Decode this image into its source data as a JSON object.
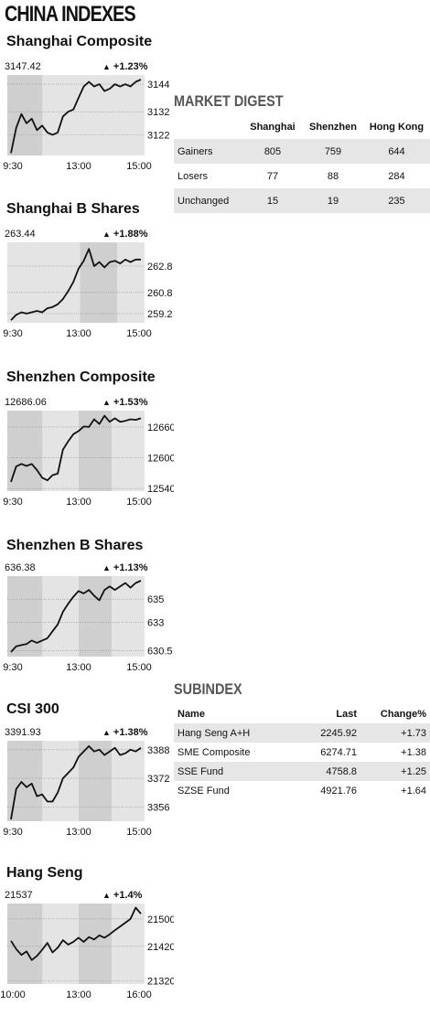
{
  "page": {
    "title": "CHINA INDEXES"
  },
  "chart_data": [
    {
      "type": "line",
      "name": "Shanghai Composite",
      "last_value": "3147.42",
      "change": "+1.23%",
      "direction": "up",
      "x_ticks": [
        "9:30",
        "13:00",
        "15:00"
      ],
      "y_ticks": [
        3144,
        3132,
        3122
      ],
      "ylim": [
        3113,
        3148
      ],
      "y": [
        3114,
        3125,
        3131,
        3127,
        3129,
        3124,
        3126,
        3123,
        3122,
        3123,
        3130,
        3132,
        3133,
        3138,
        3143,
        3145,
        3143,
        3144,
        3141,
        3142,
        3144,
        3143,
        3144,
        3143,
        3145,
        3146
      ]
    },
    {
      "type": "line",
      "name": "Shanghai B Shares",
      "last_value": "263.44",
      "change": "+1.88%",
      "direction": "up",
      "x_ticks": [
        "9:30",
        "13:00",
        "15:00"
      ],
      "y_ticks": [
        262.8,
        260.8,
        259.2
      ],
      "ylim": [
        258.5,
        264.6
      ],
      "y": [
        258.7,
        259.1,
        259.3,
        259.2,
        259.3,
        259.4,
        259.3,
        259.6,
        259.7,
        259.9,
        260.3,
        260.9,
        261.6,
        262.6,
        263.2,
        264.1,
        262.8,
        263.1,
        262.7,
        263.1,
        263.2,
        263.0,
        263.3,
        263.1,
        263.3,
        263.3
      ]
    },
    {
      "type": "line",
      "name": "Shenzhen Composite",
      "last_value": "12686.06",
      "change": "+1.53%",
      "direction": "up",
      "x_ticks": [
        "9:30",
        "13:00",
        "15:00"
      ],
      "y_ticks": [
        12660,
        12600,
        12540
      ],
      "ylim": [
        12535,
        12692
      ],
      "y": [
        12553,
        12583,
        12588,
        12584,
        12588,
        12576,
        12561,
        12556,
        12566,
        12569,
        12616,
        12632,
        12646,
        12652,
        12661,
        12660,
        12675,
        12666,
        12682,
        12670,
        12677,
        12670,
        12672,
        12675,
        12674,
        12677
      ]
    },
    {
      "type": "line",
      "name": "Shenzhen B Shares",
      "last_value": "636.38",
      "change": "+1.13%",
      "direction": "up",
      "x_ticks": [
        "9:30",
        "13:00",
        "15:00"
      ],
      "y_ticks": [
        635,
        633,
        630.5
      ],
      "ylim": [
        630.0,
        637.0
      ],
      "y": [
        630.4,
        630.9,
        631.0,
        631.1,
        631.4,
        631.2,
        631.4,
        631.6,
        632.2,
        632.8,
        633.9,
        634.6,
        635.2,
        635.7,
        635.5,
        635.8,
        635.3,
        634.9,
        635.8,
        636.1,
        635.8,
        636.1,
        636.4,
        636.0,
        636.4,
        636.6
      ]
    },
    {
      "type": "line",
      "name": "CSI 300",
      "last_value": "3391.93",
      "change": "+1.38%",
      "direction": "up",
      "x_ticks": [
        "9:30",
        "13:00",
        "15:00"
      ],
      "y_ticks": [
        3388,
        3372,
        3356
      ],
      "ylim": [
        3348,
        3393
      ],
      "y": [
        3349,
        3366,
        3370,
        3367,
        3369,
        3362,
        3363,
        3359,
        3359,
        3364,
        3372,
        3375,
        3378,
        3384,
        3387,
        3390,
        3387,
        3388,
        3385,
        3387,
        3389,
        3385,
        3386,
        3388,
        3387,
        3389
      ]
    },
    {
      "type": "line",
      "name": "Hang Seng",
      "last_value": "21537",
      "change": "+1.4%",
      "direction": "up",
      "x_ticks": [
        "10:00",
        "13:00",
        "16:00"
      ],
      "y_ticks": [
        21500,
        21420,
        21320
      ],
      "ylim": [
        21310,
        21545
      ],
      "y": [
        21436,
        21412,
        21395,
        21405,
        21380,
        21392,
        21410,
        21430,
        21402,
        21416,
        21438,
        21425,
        21433,
        21445,
        21433,
        21447,
        21440,
        21452,
        21445,
        21455,
        21467,
        21478,
        21489,
        21500,
        21533,
        21515
      ]
    }
  ],
  "market_digest": {
    "title": "MARKET DIGEST",
    "columns": [
      "",
      "Shanghai",
      "Shenzhen",
      "Hong Kong"
    ],
    "rows": [
      {
        "label": "Gainers",
        "values": [
          "805",
          "759",
          "644"
        ]
      },
      {
        "label": "Losers",
        "values": [
          "77",
          "88",
          "284"
        ]
      },
      {
        "label": "Unchanged",
        "values": [
          "15",
          "19",
          "235"
        ]
      }
    ]
  },
  "subindex": {
    "title": "SUBINDEX",
    "columns": [
      "Name",
      "Last",
      "Change%"
    ],
    "rows": [
      {
        "name": "Hang Seng A+H",
        "last": "2245.92",
        "change": "+1.73"
      },
      {
        "name": "SME Composite",
        "last": "6274.71",
        "change": "+1.38"
      },
      {
        "name": "SSE Fund",
        "last": "4758.8",
        "change": "+1.25"
      },
      {
        "name": "SZSE Fund",
        "last": "4921.76",
        "change": "+1.64"
      }
    ]
  },
  "colors": {
    "plot_background": "#e4e4e4",
    "shaded_band": "#cfcfcf",
    "line": "#111111",
    "table_shade": "#e6e6e6"
  }
}
